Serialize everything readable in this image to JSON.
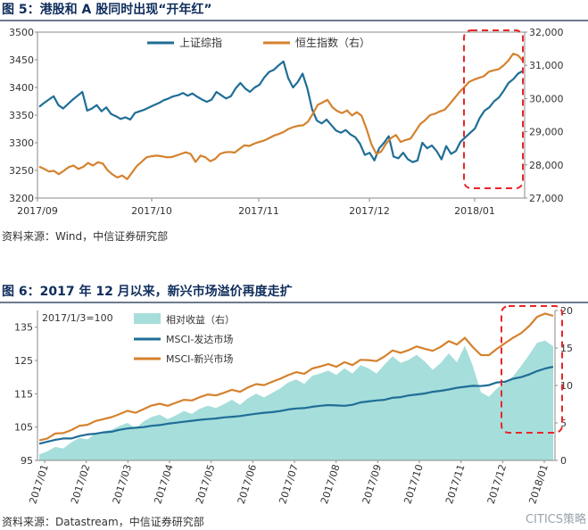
{
  "figures": [
    {
      "title": "图 5：港股和 A 股同时出现“开年红”",
      "source": "资料来源：Wind，中信证券研究部"
    },
    {
      "title": "图 6：2017 年 12 月以来，新兴市场溢价再度走扩",
      "source": "资料来源：Datastream，中信证券研究部"
    }
  ],
  "watermark": "CITICS策略",
  "colors": {
    "blue": "#1f6e96",
    "orange": "#d4822e",
    "teal": "#a6dedb",
    "highlight": "#e8262a"
  },
  "chart_data": [
    {
      "type": "line",
      "x_labels": [
        "2017/09",
        "2017/10",
        "2017/11",
        "2017/12",
        "2018/01"
      ],
      "y_left": {
        "ticks": [
          3200,
          3250,
          3300,
          3350,
          3400,
          3450,
          3500
        ],
        "range": [
          3200,
          3500
        ]
      },
      "y_right": {
        "ticks": [
          "27,000",
          "28,000",
          "29,000",
          "30,000",
          "31,000",
          "32,000"
        ],
        "range": [
          27000,
          32000
        ]
      },
      "series": [
        {
          "name": "上证综指",
          "axis": "left",
          "color": "#1f6e96",
          "values": [
            3365,
            3372,
            3378,
            3384,
            3368,
            3362,
            3370,
            3378,
            3385,
            3392,
            3358,
            3362,
            3368,
            3357,
            3364,
            3352,
            3348,
            3343,
            3346,
            3342,
            3354,
            3357,
            3360,
            3364,
            3368,
            3372,
            3377,
            3380,
            3384,
            3386,
            3390,
            3385,
            3389,
            3383,
            3378,
            3374,
            3378,
            3392,
            3386,
            3380,
            3384,
            3398,
            3408,
            3398,
            3392,
            3400,
            3405,
            3418,
            3428,
            3432,
            3440,
            3447,
            3417,
            3400,
            3410,
            3425,
            3398,
            3360,
            3340,
            3335,
            3342,
            3332,
            3322,
            3318,
            3323,
            3315,
            3310,
            3298,
            3278,
            3282,
            3268,
            3290,
            3300,
            3312,
            3275,
            3272,
            3282,
            3270,
            3265,
            3268,
            3300,
            3290,
            3295,
            3285,
            3270,
            3294,
            3280,
            3285,
            3302,
            3310,
            3318,
            3326,
            3345,
            3358,
            3364,
            3375,
            3382,
            3394,
            3408,
            3415,
            3425,
            3430
          ]
        },
        {
          "name": "恒生指数（右）",
          "axis": "right",
          "color": "#d4822e",
          "values": [
            27950,
            27880,
            27800,
            27820,
            27720,
            27820,
            27930,
            27980,
            27880,
            27940,
            28060,
            27980,
            28080,
            28040,
            27840,
            27710,
            27620,
            27680,
            27570,
            27770,
            27970,
            28100,
            28230,
            28260,
            28280,
            28260,
            28230,
            28230,
            28280,
            28330,
            28380,
            28330,
            28090,
            28280,
            28230,
            28110,
            28180,
            28330,
            28380,
            28390,
            28370,
            28480,
            28590,
            28570,
            28640,
            28690,
            28730,
            28800,
            28880,
            28930,
            28990,
            29080,
            29140,
            29180,
            29190,
            29300,
            29540,
            29810,
            29880,
            29960,
            29740,
            29620,
            29560,
            29640,
            29490,
            29590,
            29480,
            29080,
            28620,
            28330,
            28400,
            28640,
            28810,
            28900,
            28690,
            28750,
            28790,
            29010,
            29230,
            29350,
            29500,
            29540,
            29610,
            29660,
            29830,
            30010,
            30190,
            30340,
            30500,
            30570,
            30620,
            30670,
            30800,
            30850,
            30880,
            30990,
            31140,
            31350,
            31300,
            31140
          ]
        }
      ],
      "annotation": "red dashed box highlighting 2018/01"
    },
    {
      "type": "area",
      "subtitle": "2017/1/3=100",
      "x_labels": [
        "2017/01",
        "2017/02",
        "2017/03",
        "2017/04",
        "2017/05",
        "2017/06",
        "2017/07",
        "2017/08",
        "2017/09",
        "2017/10",
        "2017/11",
        "2017/12",
        "2018/01"
      ],
      "y_left": {
        "ticks": [
          95,
          105,
          115,
          125,
          135
        ],
        "range": [
          95,
          140
        ]
      },
      "y_right": {
        "ticks": [
          0,
          5,
          10,
          15,
          20
        ],
        "range": [
          0,
          20
        ]
      },
      "series": [
        {
          "name": "相对收益（右）",
          "axis": "right",
          "color": "#a6dedb",
          "values": [
            0.8,
            1.2,
            1.8,
            1.6,
            2.4,
            3.0,
            2.8,
            3.6,
            3.9,
            4.1,
            4.6,
            5.0,
            4.3,
            5.2,
            5.8,
            6.1,
            5.5,
            6.0,
            6.6,
            6.2,
            6.9,
            7.3,
            7.0,
            7.5,
            8.1,
            7.4,
            8.3,
            8.9,
            8.4,
            9.0,
            9.6,
            10.4,
            10.8,
            10.2,
            11.3,
            11.6,
            12.0,
            11.4,
            12.3,
            11.6,
            12.7,
            12.3,
            11.6,
            12.8,
            13.9,
            13.0,
            13.4,
            14.1,
            13.2,
            12.1,
            13.0,
            14.3,
            13.1,
            15.3,
            12.6,
            9.1,
            8.5,
            9.6,
            10.4,
            11.2,
            12.6,
            14.1,
            15.7,
            16.0,
            15.2
          ]
        },
        {
          "name": "MSCI-发达市场",
          "axis": "left",
          "color": "#1f6e96",
          "values": [
            100,
            100.6,
            101.2,
            101.6,
            101.6,
            102.3,
            102.8,
            103.0,
            103.4,
            103.6,
            104.2,
            104.6,
            104.8,
            105.0,
            105.4,
            105.6,
            106.0,
            106.3,
            106.6,
            106.9,
            107.2,
            107.4,
            107.6,
            107.9,
            108.1,
            108.3,
            108.7,
            109.0,
            109.3,
            109.5,
            109.8,
            110.3,
            110.6,
            110.7,
            111.1,
            111.4,
            111.6,
            111.5,
            111.4,
            111.7,
            112.4,
            112.7,
            113.0,
            113.2,
            113.8,
            114.0,
            114.5,
            114.8,
            115.1,
            115.6,
            115.9,
            116.3,
            116.8,
            117.1,
            117.4,
            117.3,
            117.6,
            118.4,
            118.6,
            119.5,
            120.0,
            120.8,
            121.8,
            122.6,
            123.1
          ]
        },
        {
          "name": "MSCI-新兴市场",
          "axis": "left",
          "color": "#d4822e",
          "values": [
            101,
            101.6,
            103.1,
            103.2,
            104.1,
            105.4,
            105.7,
            106.8,
            107.4,
            108.0,
            108.9,
            109.9,
            109.3,
            110.4,
            111.5,
            112.0,
            111.4,
            112.3,
            113.2,
            113.0,
            114.0,
            114.8,
            114.5,
            115.3,
            116.2,
            115.6,
            116.9,
            117.9,
            117.6,
            118.6,
            119.5,
            120.6,
            121.5,
            121.0,
            122.6,
            123.2,
            123.9,
            123.1,
            124.5,
            123.6,
            125.2,
            125.1,
            124.8,
            126.2,
            128.0,
            127.3,
            128.1,
            129.2,
            128.5,
            127.9,
            129.1,
            130.8,
            129.8,
            131.8,
            129.0,
            126.6,
            126.6,
            128.5,
            130.2,
            131.8,
            133.2,
            135.3,
            138.1,
            139.1,
            138.4
          ]
        }
      ],
      "annotation": "red dashed box highlighting 2017/12 to 2018/01"
    }
  ]
}
